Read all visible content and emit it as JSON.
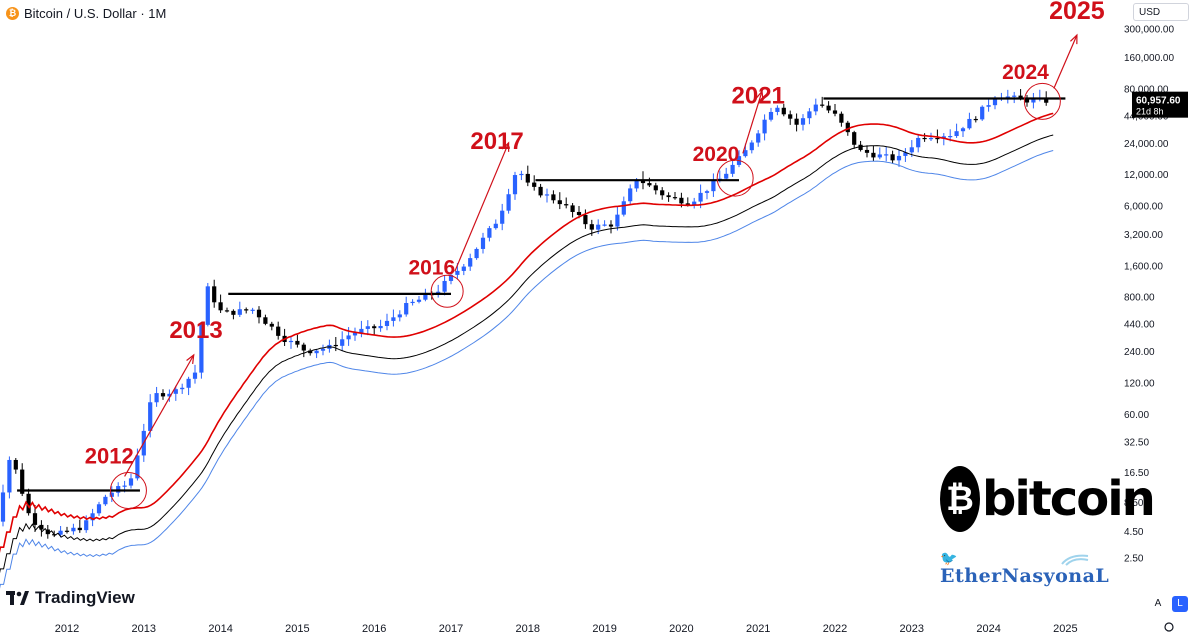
{
  "header": {
    "title": "Bitcoin / U.S. Dollar · 1M",
    "icon": "bitcoin-icon"
  },
  "currency_button": "USD",
  "brand": {
    "tradingview": "TradingView",
    "bitcoin_word": "bitcoin",
    "author": "EtherNasyonaL"
  },
  "scale_buttons": {
    "auto": "A",
    "log": "L"
  },
  "chart_data": {
    "type": "candlestick",
    "scale": "log",
    "price_axis": [
      "300,000.00",
      "160,000.00",
      "80,000.00",
      "44,000.00",
      "24,000.00",
      "12,000.00",
      "6,000.00",
      "3,200.00",
      "1,600.00",
      "800.00",
      "440.00",
      "240.00",
      "120.00",
      "60.00",
      "32.50",
      "16.50",
      "8.50",
      "4.50",
      "2.50"
    ],
    "time_axis": [
      "2012",
      "2013",
      "2014",
      "2015",
      "2016",
      "2017",
      "2018",
      "2019",
      "2020",
      "2021",
      "2022",
      "2023",
      "2024",
      "2025"
    ],
    "last_price": {
      "value": "60,957.60",
      "countdown": "21d 8h"
    },
    "annotations": [
      "2012",
      "2013",
      "2016",
      "2017",
      "2020",
      "2021",
      "2024",
      "2025"
    ],
    "colors": {
      "up": "#2962ff",
      "down": "#000000",
      "ma_red": "#e00000",
      "band_black": "#000000",
      "band_blue": "#4f86e8",
      "annotation": "#d0101a"
    },
    "grid": false
  }
}
